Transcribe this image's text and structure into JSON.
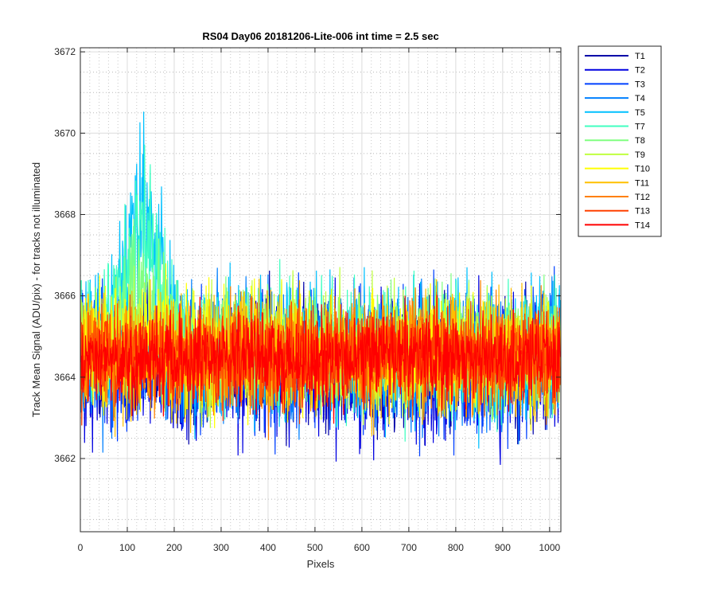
{
  "chart_data": {
    "type": "line",
    "title": "RS04 Day06 20181206-Lite-006 int time = 2.5 sec",
    "xlabel": "Pixels",
    "ylabel": "Track Mean Signal (ADU/pix) - for tracks not illuminated",
    "xlim": [
      0,
      1024
    ],
    "ylim": [
      3660.2,
      3672.1
    ],
    "xticks": [
      0,
      100,
      200,
      300,
      400,
      500,
      600,
      700,
      800,
      900,
      1000
    ],
    "yticks": [
      3662,
      3664,
      3666,
      3668,
      3670,
      3672
    ],
    "grid": "major and minor",
    "legend_position": "outside-top-right",
    "n_points": 1024,
    "series": [
      {
        "name": "T1",
        "color": "#0000a8",
        "baseline": 3664.3,
        "noise": 0.75,
        "bump": 0
      },
      {
        "name": "T2",
        "color": "#0000e0",
        "baseline": 3664.2,
        "noise": 0.8,
        "bump": 0
      },
      {
        "name": "T3",
        "color": "#0040ff",
        "baseline": 3664.4,
        "noise": 0.8,
        "bump": 0
      },
      {
        "name": "T4",
        "color": "#0080ff",
        "baseline": 3664.5,
        "noise": 0.8,
        "bump": 0.6
      },
      {
        "name": "T5",
        "color": "#00c0ff",
        "baseline": 3664.6,
        "noise": 0.8,
        "bump": 4.8
      },
      {
        "name": "T7",
        "color": "#40ffc0",
        "baseline": 3664.7,
        "noise": 0.75,
        "bump": 3.8
      },
      {
        "name": "T8",
        "color": "#80ff80",
        "baseline": 3664.7,
        "noise": 0.7,
        "bump": 1.8
      },
      {
        "name": "T9",
        "color": "#c0ff40",
        "baseline": 3664.6,
        "noise": 0.7,
        "bump": 0.8
      },
      {
        "name": "T10",
        "color": "#ffff00",
        "baseline": 3664.6,
        "noise": 0.7,
        "bump": 0.4
      },
      {
        "name": "T11",
        "color": "#ffc000",
        "baseline": 3664.5,
        "noise": 0.7,
        "bump": 0
      },
      {
        "name": "T12",
        "color": "#ff8000",
        "baseline": 3664.5,
        "noise": 0.65,
        "bump": 0
      },
      {
        "name": "T13",
        "color": "#ff4000",
        "baseline": 3664.5,
        "noise": 0.6,
        "bump": 0
      },
      {
        "name": "T14",
        "color": "#ff0000",
        "baseline": 3664.5,
        "noise": 0.55,
        "bump": 0
      }
    ]
  }
}
